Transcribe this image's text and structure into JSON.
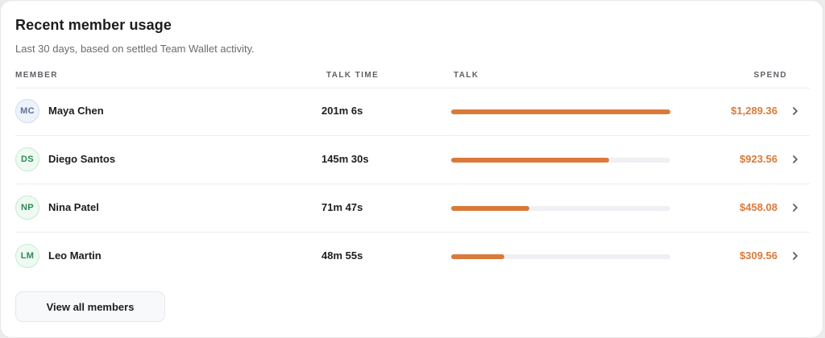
{
  "card": {
    "title": "Recent member usage",
    "subtitle": "Last 30 days, based on settled Team Wallet activity."
  },
  "table": {
    "headers": {
      "member": "MEMBER",
      "talk_time": "TALK TIME",
      "talk": "TALK",
      "spend": "SPEND"
    },
    "rows": [
      {
        "initials": "MC",
        "name": "Maya Chen",
        "talk_time": "201m 6s",
        "talk_fraction": 1.0,
        "spend": "$1,289.36",
        "avatar_color": "blue"
      },
      {
        "initials": "DS",
        "name": "Diego Santos",
        "talk_time": "145m 30s",
        "talk_fraction": 0.72,
        "spend": "$923.56",
        "avatar_color": "green"
      },
      {
        "initials": "NP",
        "name": "Nina Patel",
        "talk_time": "71m 47s",
        "talk_fraction": 0.357,
        "spend": "$458.08",
        "avatar_color": "green"
      },
      {
        "initials": "LM",
        "name": "Leo Martin",
        "talk_time": "48m 55s",
        "talk_fraction": 0.243,
        "spend": "$309.56",
        "avatar_color": "green"
      }
    ]
  },
  "footer": {
    "view_all_label": "View all members"
  },
  "colors": {
    "accent": "#d97a3a",
    "bar_track": "#eef0f3"
  },
  "icons": {
    "row_action": "chevron-right-icon"
  }
}
